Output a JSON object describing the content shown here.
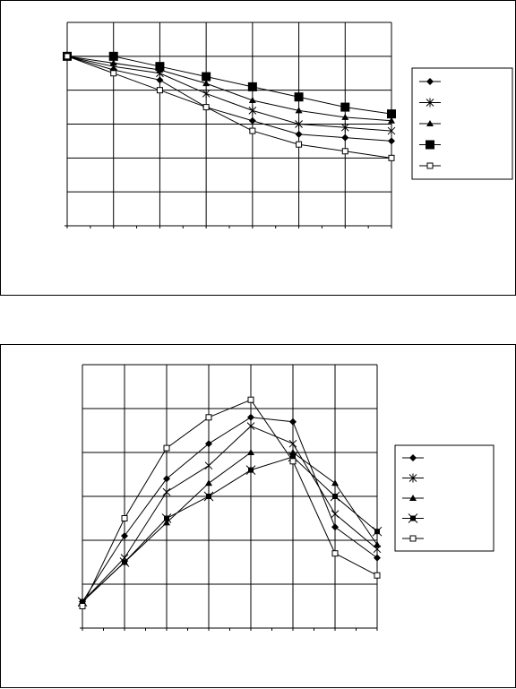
{
  "chart_data": [
    {
      "type": "line",
      "title": "",
      "xlabel": "",
      "ylabel": "",
      "x": [
        0,
        1,
        2,
        3,
        4,
        5,
        6,
        7
      ],
      "xlim": [
        0,
        7
      ],
      "ylim": [
        0,
        6
      ],
      "grid": true,
      "legend": "right",
      "series": [
        {
          "marker": "diamond-filled",
          "values": [
            5.0,
            4.6,
            4.3,
            3.5,
            3.1,
            2.7,
            2.6,
            2.5
          ]
        },
        {
          "marker": "asterisk",
          "values": [
            5.0,
            4.7,
            4.5,
            3.9,
            3.4,
            3.0,
            2.9,
            2.8
          ]
        },
        {
          "marker": "triangle-filled",
          "values": [
            5.0,
            4.8,
            4.6,
            4.2,
            3.7,
            3.4,
            3.2,
            3.1
          ]
        },
        {
          "marker": "square-filled-large",
          "values": [
            5.0,
            5.0,
            4.7,
            4.4,
            4.1,
            3.8,
            3.5,
            3.3
          ]
        },
        {
          "marker": "square-open",
          "values": [
            5.0,
            4.5,
            4.0,
            3.5,
            2.8,
            2.4,
            2.2,
            2.0
          ]
        }
      ]
    },
    {
      "type": "line",
      "title": "",
      "xlabel": "",
      "ylabel": "",
      "x": [
        0,
        1,
        2,
        3,
        4,
        5,
        6,
        7
      ],
      "xlim": [
        0,
        7
      ],
      "ylim": [
        0,
        6
      ],
      "grid": true,
      "legend": "right",
      "series": [
        {
          "marker": "diamond-filled",
          "values": [
            0.6,
            2.1,
            3.4,
            4.2,
            4.8,
            4.7,
            2.3,
            1.6
          ]
        },
        {
          "marker": "asterisk",
          "values": [
            0.6,
            1.6,
            3.1,
            3.7,
            4.6,
            4.2,
            2.6,
            1.8
          ]
        },
        {
          "marker": "triangle-filled",
          "values": [
            0.6,
            1.5,
            2.4,
            3.3,
            4.0,
            4.0,
            3.3,
            1.9
          ]
        },
        {
          "marker": "x-square-filled",
          "values": [
            0.6,
            1.5,
            2.5,
            3.0,
            3.6,
            3.9,
            3.0,
            2.2
          ]
        },
        {
          "marker": "square-open",
          "values": [
            0.5,
            2.5,
            4.1,
            4.8,
            5.2,
            3.8,
            1.7,
            1.2
          ]
        }
      ]
    }
  ]
}
